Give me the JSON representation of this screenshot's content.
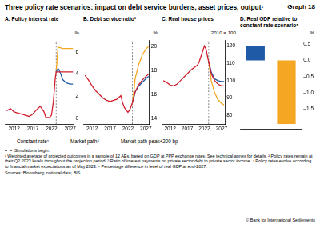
{
  "title": "Three policy rate scenarios: impact on debt service burdens, asset prices, output¹",
  "graph_label": "Graph 18",
  "chart_data": [
    {
      "type": "line",
      "title": "A. Policy interest rate",
      "ylabel": "%",
      "xlim": [
        2009.5,
        2028
      ],
      "xticks": [
        2012,
        2017,
        2022,
        2027
      ],
      "ylim": [
        -0.5,
        7
      ],
      "yticks": [
        0,
        2,
        4,
        6
      ],
      "grid": false,
      "simulation_start": 2023.25,
      "series": [
        {
          "name": "Constant rate²",
          "color": "#d11e2c",
          "x": [
            2010,
            2011,
            2012,
            2013,
            2014,
            2015,
            2016,
            2017,
            2018,
            2019,
            2020,
            2020.5,
            2021,
            2021.5,
            2022,
            2022.5,
            2023,
            2023.25,
            2024,
            2025,
            2026,
            2027,
            2027.75
          ],
          "values": [
            0.7,
            0.9,
            0.6,
            0.5,
            0.4,
            0.3,
            0.2,
            0.4,
            0.8,
            1.1,
            0.6,
            0.1,
            0.1,
            0.1,
            0.3,
            1.5,
            3.6,
            4.2,
            4.2,
            4.2,
            4.2,
            4.2,
            4.2
          ]
        },
        {
          "name": "Market path⁴",
          "color": "#1f5aa6",
          "x": [
            2023.25,
            2023.75,
            2024,
            2024.5,
            2025,
            2026,
            2027,
            2027.75
          ],
          "values": [
            4.2,
            4.5,
            4.4,
            4.0,
            3.5,
            3.2,
            3.1,
            3.1
          ]
        },
        {
          "name": "Market path peak+200 bp",
          "color": "#f5a623",
          "x": [
            2023.25,
            2023.75,
            2024,
            2025,
            2026,
            2027,
            2027.75
          ],
          "values": [
            4.2,
            6.4,
            6.4,
            6.3,
            6.3,
            6.3,
            6.3
          ]
        }
      ]
    },
    {
      "type": "line",
      "title": "B. Debt service ratio³",
      "ylabel": "%",
      "xlim": [
        2009.5,
        2028
      ],
      "xticks": [
        2012,
        2017,
        2022,
        2027
      ],
      "ylim": [
        13.5,
        20.5
      ],
      "yticks": [
        14,
        16,
        18,
        20
      ],
      "grid": false,
      "simulation_start": 2023.25,
      "series": [
        {
          "name": "Constant rate²",
          "color": "#d11e2c",
          "x": [
            2010,
            2011,
            2012,
            2013,
            2014,
            2015,
            2016,
            2017,
            2018,
            2019,
            2020,
            2020.5,
            2021,
            2021.5,
            2022,
            2022.5,
            2023,
            2023.25,
            2024,
            2025,
            2026,
            2027,
            2027.75
          ],
          "values": [
            17.6,
            17.2,
            16.7,
            16.3,
            16.0,
            15.7,
            15.5,
            15.4,
            15.5,
            15.6,
            15.9,
            15.3,
            14.9,
            14.7,
            14.5,
            14.7,
            15.1,
            15.3,
            16.2,
            16.8,
            17.2,
            17.5,
            17.7
          ]
        },
        {
          "name": "Market path⁴",
          "color": "#1f5aa6",
          "x": [
            2023.25,
            2024,
            2025,
            2026,
            2027,
            2027.75
          ],
          "values": [
            15.3,
            16.2,
            16.7,
            17.0,
            17.3,
            17.5
          ]
        },
        {
          "name": "Market path peak+200 bp",
          "color": "#f5a623",
          "x": [
            2023.25,
            2023.75,
            2024,
            2025,
            2026,
            2027,
            2027.75
          ],
          "values": [
            15.3,
            16.5,
            17.3,
            18.5,
            19.3,
            19.8,
            20.0
          ]
        }
      ]
    },
    {
      "type": "line",
      "title": "C. Real house prices",
      "ylabel": "2010 = 100",
      "xlim": [
        2009.5,
        2028
      ],
      "xticks": [
        2012,
        2017,
        2022,
        2027
      ],
      "ylim": [
        75,
        123
      ],
      "yticks": [
        80,
        90,
        100,
        110,
        120
      ],
      "grid": false,
      "simulation_start": 2023.25,
      "series": [
        {
          "name": "Constant rate²",
          "color": "#d11e2c",
          "x": [
            2010,
            2011,
            2012,
            2013,
            2014,
            2015,
            2016,
            2017,
            2018,
            2019,
            2020,
            2020.5,
            2021,
            2021.5,
            2022,
            2022.5,
            2023,
            2023.25,
            2024,
            2025,
            2026,
            2027,
            2027.75
          ],
          "values": [
            100,
            99,
            97.5,
            97,
            98,
            100,
            102,
            104,
            106,
            107.5,
            109,
            111,
            114,
            117,
            120,
            118,
            113,
            111,
            104,
            100,
            98,
            97,
            97
          ]
        },
        {
          "name": "Market path⁴",
          "color": "#1f5aa6",
          "x": [
            2023.25,
            2024,
            2025,
            2026,
            2027,
            2027.75
          ],
          "values": [
            111,
            105,
            101,
            100,
            99.5,
            99.5
          ]
        },
        {
          "name": "Market path peak+200 bp",
          "color": "#f5a623",
          "x": [
            2023.25,
            2024,
            2025,
            2026,
            2027,
            2027.75
          ],
          "values": [
            111,
            100,
            93,
            89,
            87,
            86
          ]
        }
      ]
    },
    {
      "type": "bar",
      "title": "D. Real GDP relative to constant rate scenario⁵",
      "ylabel": "%",
      "categories": [
        null,
        null
      ],
      "values": [
        0.45,
        -1.95
      ],
      "colors": [
        "#1f5aa6",
        "#f5a623"
      ],
      "ylim": [
        -2.1,
        0.6
      ],
      "yticks": [
        {
          "value": -1.5,
          "label": "–1.5"
        },
        {
          "value": -1.0,
          "label": "–1.0"
        },
        {
          "value": -0.5,
          "label": "–0.5"
        },
        {
          "value": 0,
          "label": "0.0"
        },
        {
          "value": 0.5,
          "label": "0.5"
        }
      ],
      "grid": false,
      "tick_labels": "y"
    }
  ],
  "simulations_note": "Simulations begin.",
  "footnotes": "¹ Weighted average of projected outcomes in a sample of 12 AEs, based on GDP at PPP exchange rates. See technical annex for details. ² Policy rates remain at their Q2 2023 levels throughout the projection period. ³ Ratio of interest payments on private sector debt to private sector income. ⁴ Policy rates evolve according to financial market expectations as of May 2023. ⁵ Percentage difference in level of real GDP at end-2027.",
  "sources": "Sources: Bloomberg; national data; BIS.",
  "copyright": "© Bank for International Settlements"
}
